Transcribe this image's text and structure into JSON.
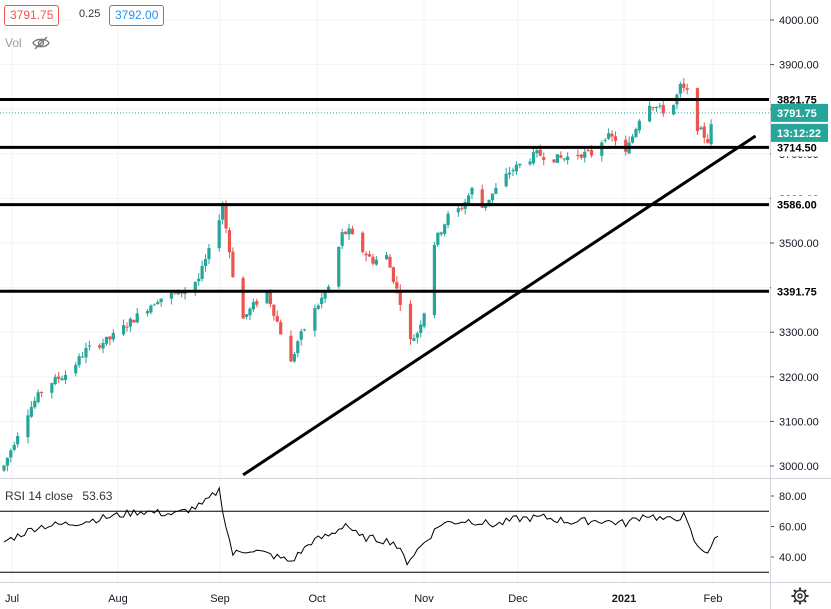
{
  "header": {
    "bid": "3791.75",
    "spread": "0.25",
    "ask": "3792.00",
    "volume_label": "Vol",
    "volume_icon": "eye-hidden-icon"
  },
  "rsi_label": "RSI 14 close",
  "rsi_value": "53.63",
  "settings_icon": "gear-icon",
  "colors": {
    "up": "#26a69a",
    "down": "#ef5350",
    "line": "#000000",
    "grid": "#f0f3f6",
    "current_price_tag": "#26a69a",
    "timer_tag": "#26a69a"
  },
  "chart_data": [
    {
      "type": "candlestick",
      "x_tick_labels": [
        "Jul",
        "Aug",
        "Sep",
        "Oct",
        "Nov",
        "Dec",
        "2021",
        "Feb"
      ],
      "y_tick_labels": [
        "4000.00",
        "3900.00",
        "3800.00",
        "3700.00",
        "3600.00",
        "3500.00",
        "3400.00",
        "3300.00",
        "3200.00",
        "3100.00",
        "3000.00"
      ],
      "ylim": [
        2980,
        4030
      ],
      "price_path": [
        {
          "d": 0,
          "p": 3000
        },
        {
          "d": 6,
          "p": 3110
        },
        {
          "d": 12,
          "p": 3180
        },
        {
          "d": 19,
          "p": 3210
        },
        {
          "d": 24,
          "p": 3260
        },
        {
          "d": 31,
          "p": 3285
        },
        {
          "d": 38,
          "p": 3330
        },
        {
          "d": 45,
          "p": 3375
        },
        {
          "d": 52,
          "p": 3390
        },
        {
          "d": 57,
          "p": 3420
        },
        {
          "d": 60,
          "p": 3480
        },
        {
          "d": 64,
          "p": 3585
        },
        {
          "d": 67,
          "p": 3430
        },
        {
          "d": 70,
          "p": 3330
        },
        {
          "d": 73,
          "p": 3360
        },
        {
          "d": 77,
          "p": 3390
        },
        {
          "d": 81,
          "p": 3300
        },
        {
          "d": 84,
          "p": 3230
        },
        {
          "d": 86,
          "p": 3280
        },
        {
          "d": 91,
          "p": 3350
        },
        {
          "d": 95,
          "p": 3400
        },
        {
          "d": 99,
          "p": 3520
        },
        {
          "d": 101,
          "p": 3525
        },
        {
          "d": 104,
          "p": 3490
        },
        {
          "d": 108,
          "p": 3460
        },
        {
          "d": 112,
          "p": 3470
        },
        {
          "d": 116,
          "p": 3370
        },
        {
          "d": 118,
          "p": 3270
        },
        {
          "d": 121,
          "p": 3300
        },
        {
          "d": 124,
          "p": 3370
        },
        {
          "d": 126,
          "p": 3500
        },
        {
          "d": 130,
          "p": 3560
        },
        {
          "d": 134,
          "p": 3580
        },
        {
          "d": 137,
          "p": 3620
        },
        {
          "d": 140,
          "p": 3580
        },
        {
          "d": 144,
          "p": 3620
        },
        {
          "d": 148,
          "p": 3660
        },
        {
          "d": 152,
          "p": 3680
        },
        {
          "d": 156,
          "p": 3700
        },
        {
          "d": 160,
          "p": 3690
        },
        {
          "d": 164,
          "p": 3690
        },
        {
          "d": 168,
          "p": 3700
        },
        {
          "d": 172,
          "p": 3700
        },
        {
          "d": 176,
          "p": 3740
        },
        {
          "d": 180,
          "p": 3730
        },
        {
          "d": 182,
          "p": 3700
        },
        {
          "d": 185,
          "p": 3760
        },
        {
          "d": 188,
          "p": 3820
        },
        {
          "d": 192,
          "p": 3800
        },
        {
          "d": 195,
          "p": 3790
        },
        {
          "d": 198,
          "p": 3850
        },
        {
          "d": 201,
          "p": 3830
        },
        {
          "d": 203,
          "p": 3760
        },
        {
          "d": 206,
          "p": 3730
        },
        {
          "d": 208,
          "p": 3790
        }
      ],
      "rsi": {
        "ylim": [
          30,
          90
        ],
        "y_tick_labels": [
          "80.00",
          "60.00",
          "40.00"
        ],
        "bands": [
          70,
          30
        ],
        "points": [
          {
            "d": 0,
            "v": 50
          },
          {
            "d": 10,
            "v": 60
          },
          {
            "d": 20,
            "v": 62
          },
          {
            "d": 30,
            "v": 66
          },
          {
            "d": 40,
            "v": 70
          },
          {
            "d": 50,
            "v": 68
          },
          {
            "d": 58,
            "v": 74
          },
          {
            "d": 63,
            "v": 84
          },
          {
            "d": 65,
            "v": 60
          },
          {
            "d": 67,
            "v": 42
          },
          {
            "d": 72,
            "v": 45
          },
          {
            "d": 80,
            "v": 40
          },
          {
            "d": 84,
            "v": 37
          },
          {
            "d": 90,
            "v": 50
          },
          {
            "d": 96,
            "v": 55
          },
          {
            "d": 100,
            "v": 62
          },
          {
            "d": 104,
            "v": 53
          },
          {
            "d": 108,
            "v": 52
          },
          {
            "d": 114,
            "v": 50
          },
          {
            "d": 118,
            "v": 37
          },
          {
            "d": 124,
            "v": 52
          },
          {
            "d": 128,
            "v": 62
          },
          {
            "d": 136,
            "v": 64
          },
          {
            "d": 144,
            "v": 61
          },
          {
            "d": 150,
            "v": 65
          },
          {
            "d": 158,
            "v": 66
          },
          {
            "d": 166,
            "v": 63
          },
          {
            "d": 174,
            "v": 64
          },
          {
            "d": 182,
            "v": 62
          },
          {
            "d": 188,
            "v": 68
          },
          {
            "d": 194,
            "v": 64
          },
          {
            "d": 199,
            "v": 67
          },
          {
            "d": 203,
            "v": 46
          },
          {
            "d": 206,
            "v": 44
          },
          {
            "d": 209,
            "v": 53.63
          }
        ]
      },
      "horizontal_levels": [
        {
          "value": 3821.75,
          "label": "3821.75"
        },
        {
          "value": 3714.5,
          "label": "3714.50"
        },
        {
          "value": 3586.0,
          "label": "3586.00"
        },
        {
          "value": 3391.75,
          "label": "3391.75"
        }
      ],
      "trendline": {
        "from": {
          "d": 70,
          "p": 2980
        },
        "to": {
          "d": 220,
          "p": 3740
        }
      },
      "current_price": {
        "label": "3791.75",
        "timer": "13:12:22"
      }
    }
  ]
}
